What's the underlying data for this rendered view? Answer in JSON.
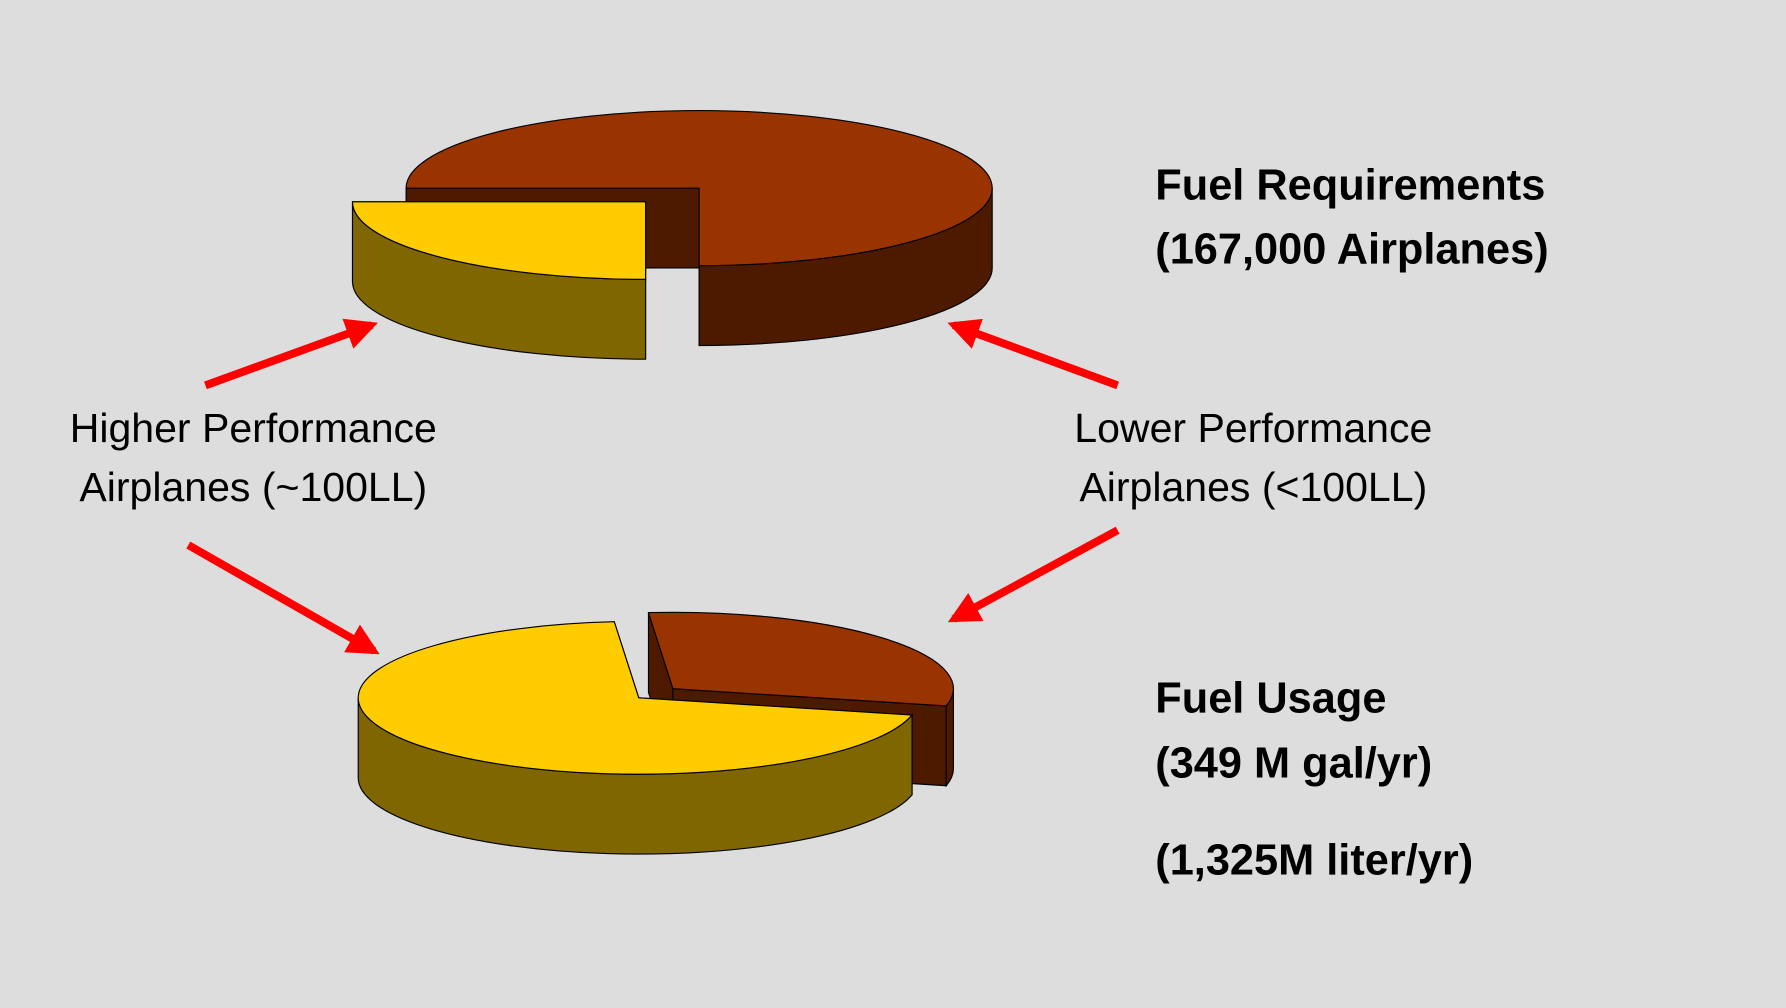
{
  "legend": [
    {
      "lines": [
        "Higher Performance",
        "Airplanes (~100LL)"
      ]
    },
    {
      "lines": [
        "Lower Performance",
        "Airplanes (<100LL)"
      ]
    }
  ],
  "chart_data": [
    {
      "type": "pie",
      "title": [
        "Fuel Requirements",
        "(167,000 Airplanes)"
      ],
      "values": [
        25,
        75
      ],
      "colors": [
        "#ffcc00",
        "#993300"
      ],
      "side_colors": [
        "#806600",
        "#4d1a00"
      ]
    },
    {
      "type": "pie",
      "title": [
        "Fuel Usage",
        "(349 M gal/yr)"
      ],
      "subtitle": "(1,325M liter/yr)",
      "values": [
        70,
        30
      ],
      "colors": [
        "#ffcc00",
        "#993300"
      ],
      "side_colors": [
        "#806600",
        "#4d1a00"
      ]
    }
  ]
}
